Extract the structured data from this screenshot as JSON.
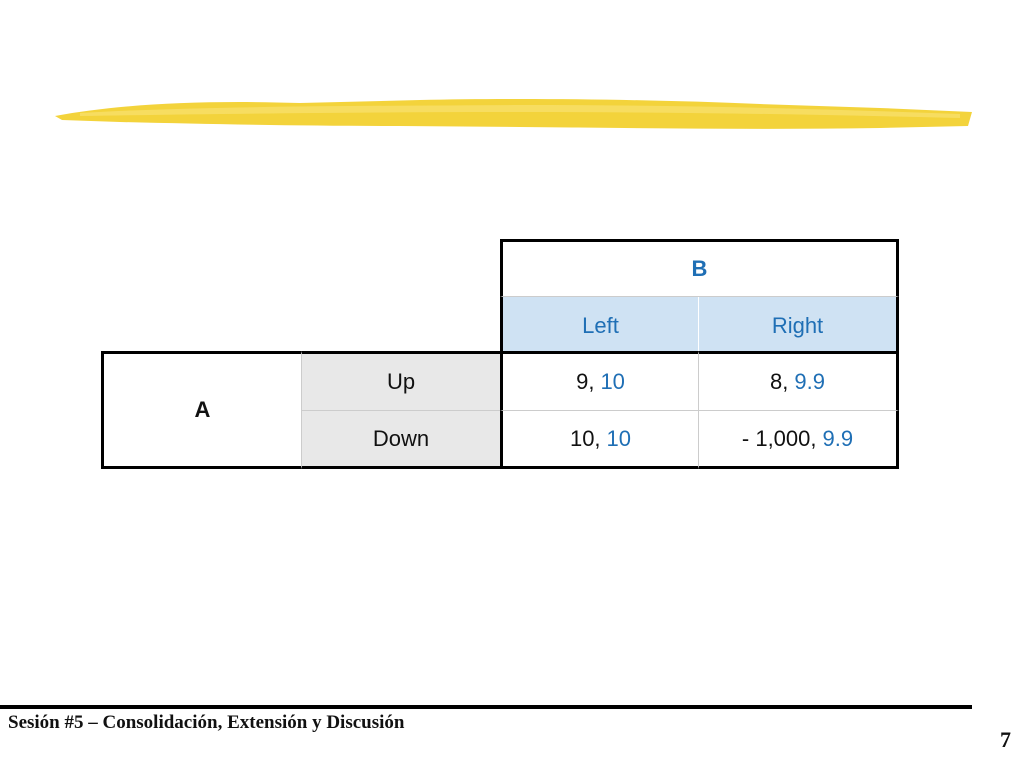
{
  "table": {
    "column_player": "B",
    "row_player": "A",
    "columns": [
      "Left",
      "Right"
    ],
    "rows": [
      "Up",
      "Down"
    ],
    "cells": [
      [
        {
          "a": "9,",
          "b": "10"
        },
        {
          "a": "8,",
          "b": "9.9"
        }
      ],
      [
        {
          "a": "10,",
          "b": "10"
        },
        {
          "a": "- 1,000,",
          "b": "9.9"
        }
      ]
    ]
  },
  "footer": {
    "title": "Sesión #5 – Consolidación, Extensión y Discusión",
    "page": "7"
  }
}
